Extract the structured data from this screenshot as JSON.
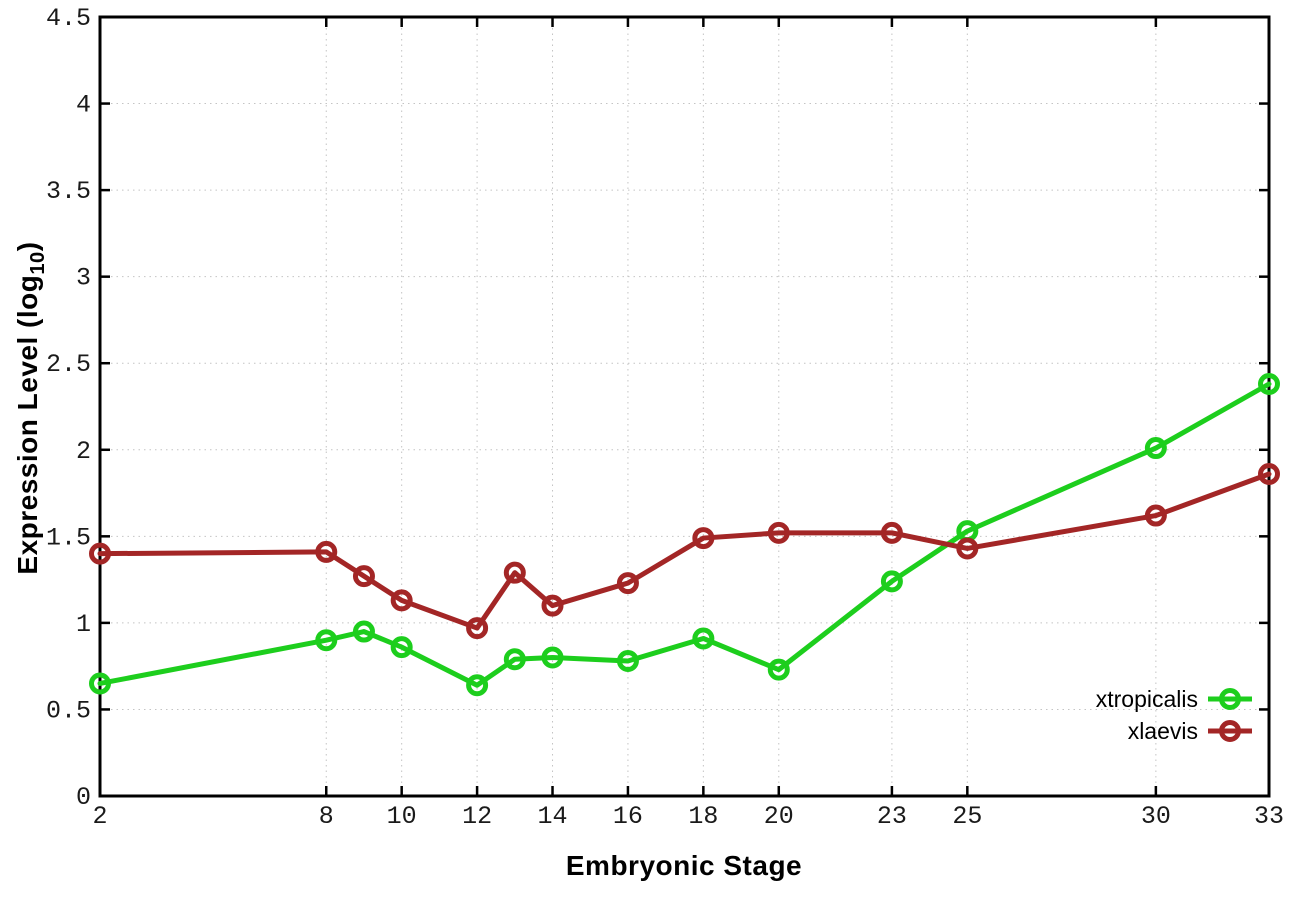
{
  "chart_data": {
    "type": "line",
    "title": "",
    "xlabel": "Embryonic Stage",
    "ylabel": "Expression Level (log10)",
    "ylabel_parts": {
      "prefix": "Expression Level (log",
      "sub": "10",
      "suffix": ")"
    },
    "xlim": [
      2,
      33
    ],
    "ylim": [
      0,
      4.5
    ],
    "x_ticks": [
      2,
      8,
      10,
      12,
      14,
      16,
      18,
      20,
      23,
      25,
      30,
      33
    ],
    "y_ticks": [
      0,
      0.5,
      1,
      1.5,
      2,
      2.5,
      3,
      3.5,
      4,
      4.5
    ],
    "grid": true,
    "legend_position": "bottom-right",
    "x": [
      2,
      8,
      9,
      10,
      12,
      13,
      14,
      16,
      18,
      20,
      23,
      25,
      30,
      33
    ],
    "series": [
      {
        "name": "xtropicalis",
        "color": "#1dce1d",
        "values": [
          0.65,
          0.9,
          0.95,
          0.86,
          0.64,
          0.79,
          0.8,
          0.78,
          0.91,
          0.73,
          1.24,
          1.53,
          2.01,
          2.38
        ]
      },
      {
        "name": "xlaevis",
        "color": "#a32626",
        "values": [
          1.4,
          1.41,
          1.27,
          1.13,
          0.97,
          1.29,
          1.1,
          1.23,
          1.49,
          1.52,
          1.52,
          1.43,
          1.62,
          1.86
        ]
      }
    ],
    "colors": {
      "border": "#000000",
      "grid": "#c4c4c4",
      "tick_text": "#1a1a1a"
    }
  }
}
